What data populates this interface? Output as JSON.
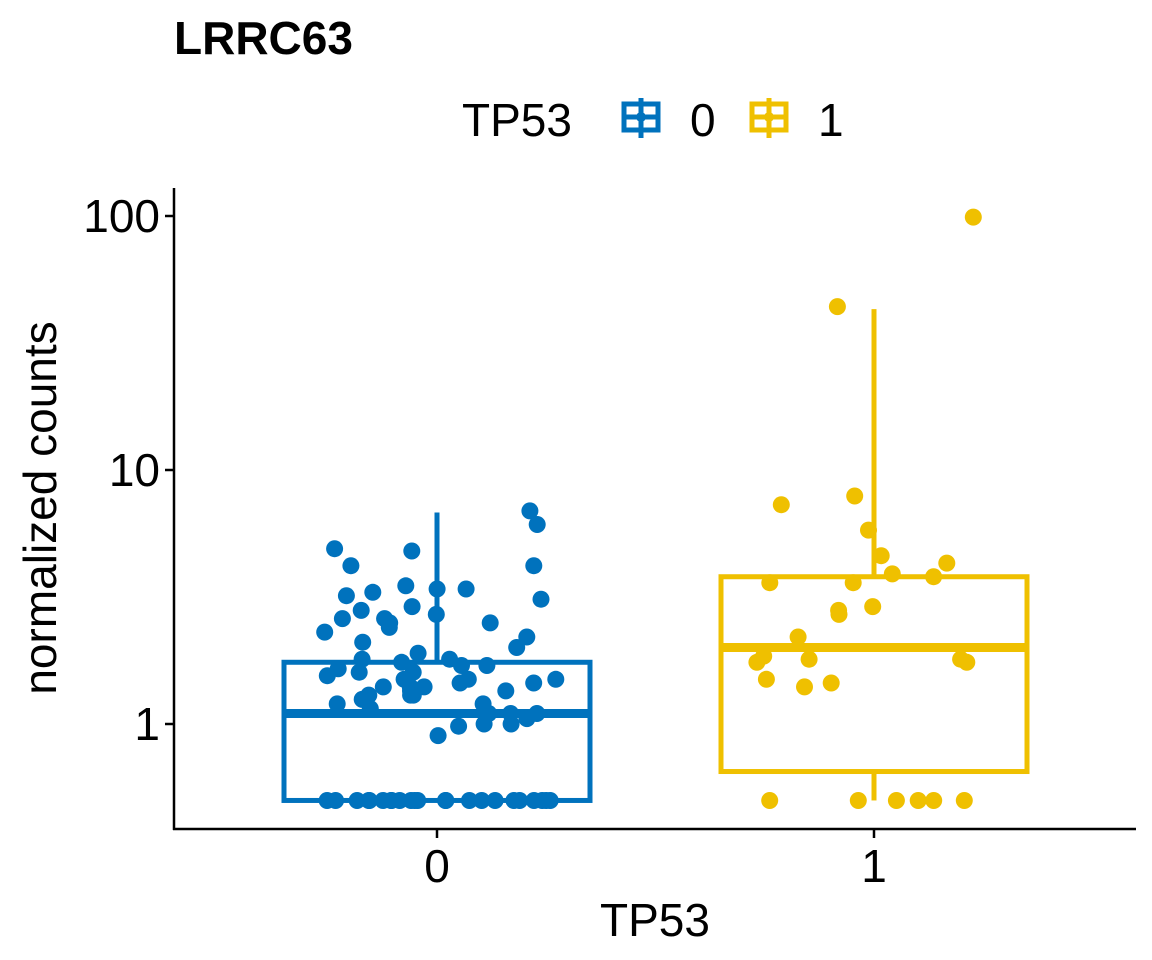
{
  "chart_data": {
    "type": "box",
    "title": "LRRC63",
    "xlabel": "TP53",
    "ylabel": "normalized counts",
    "yscale": "log10",
    "ylim": [
      0.42,
      125
    ],
    "yticks": [
      1,
      10,
      100
    ],
    "ytick_labels": [
      "1",
      "10",
      "100"
    ],
    "categories": [
      "0",
      "1"
    ],
    "legend": {
      "title": "TP53",
      "position": "top",
      "labels": [
        "0",
        "1"
      ]
    },
    "colors": {
      "0": "#0072BD",
      "1": "#EFC000"
    },
    "grid": false,
    "series": [
      {
        "group": "0",
        "box": {
          "whisker_low": 0.5,
          "q1": 0.5,
          "median": 1.1,
          "q3": 1.75,
          "whisker_high": 6.8
        },
        "points": [
          6.9,
          6.1,
          4.9,
          4.8,
          4.2,
          4.2,
          3.5,
          3.4,
          3.4,
          3.3,
          3.2,
          3.1,
          2.9,
          2.8,
          2.7,
          2.6,
          2.6,
          2.5,
          2.5,
          2.4,
          2.3,
          2.2,
          2.1,
          2.0,
          1.9,
          1.8,
          1.8,
          1.75,
          1.7,
          1.7,
          1.65,
          1.6,
          1.6,
          1.55,
          1.5,
          1.5,
          1.5,
          1.45,
          1.45,
          1.4,
          1.4,
          1.4,
          1.35,
          1.35,
          1.3,
          1.3,
          1.3,
          1.25,
          1.2,
          1.2,
          1.15,
          1.1,
          1.1,
          1.1,
          1.05,
          1.0,
          1.0,
          0.98,
          0.9,
          0.5,
          0.5,
          0.5,
          0.5,
          0.5,
          0.5,
          0.5,
          0.5,
          0.5,
          0.5,
          0.5,
          0.5,
          0.5,
          0.5,
          0.5,
          0.5,
          0.5,
          0.5,
          0.5,
          0.5,
          0.5,
          0.5,
          0.5
        ]
      },
      {
        "group": "1",
        "box": {
          "whisker_low": 0.5,
          "q1": 0.65,
          "median": 2.0,
          "q3": 3.8,
          "whisker_high": 43
        },
        "points": [
          99,
          44,
          7.9,
          7.3,
          5.8,
          4.6,
          4.3,
          3.9,
          3.8,
          3.6,
          3.6,
          2.9,
          2.8,
          2.7,
          2.2,
          1.85,
          1.8,
          1.8,
          1.75,
          1.75,
          1.5,
          1.45,
          1.4,
          0.5,
          0.5,
          0.5,
          0.5,
          0.5,
          0.5
        ]
      }
    ]
  }
}
